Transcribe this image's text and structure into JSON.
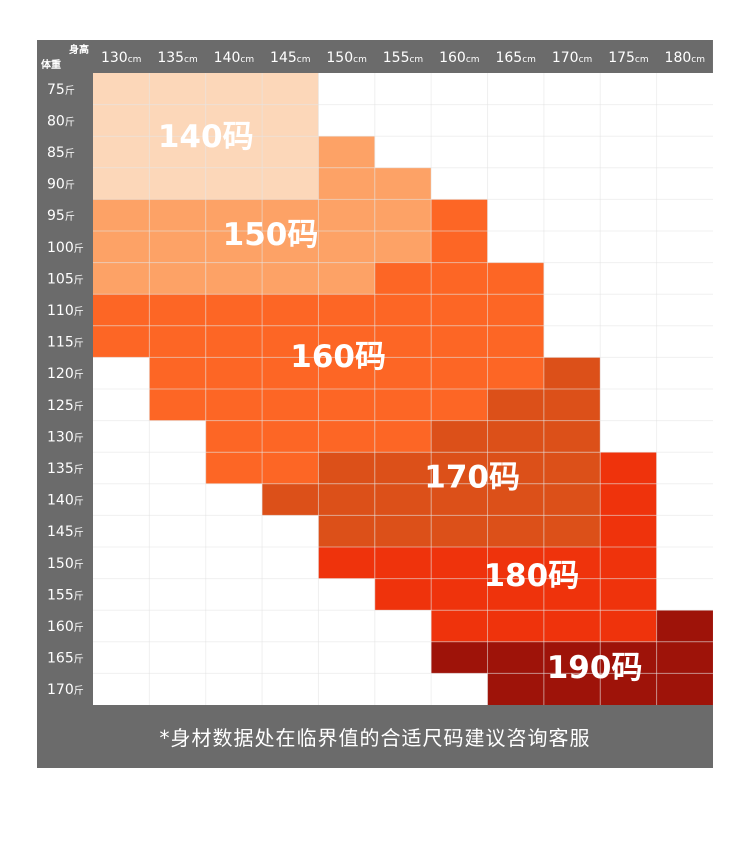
{
  "chart_data": {
    "type": "heatmap",
    "title": "",
    "corner_col_label": "身高",
    "corner_row_label": "体重",
    "col_unit": "cm",
    "row_unit": "斤",
    "columns": [
      "130",
      "135",
      "140",
      "145",
      "150",
      "155",
      "160",
      "165",
      "170",
      "175",
      "180"
    ],
    "rows": [
      "75",
      "80",
      "85",
      "90",
      "95",
      "100",
      "105",
      "110",
      "115",
      "120",
      "125",
      "130",
      "135",
      "140",
      "145",
      "150",
      "155",
      "160",
      "165",
      "170"
    ],
    "sizes": [
      {
        "label": "140码",
        "color": "#fcd7b9"
      },
      {
        "label": "150码",
        "color": "#fda266"
      },
      {
        "label": "160码",
        "color": "#fd6625"
      },
      {
        "label": "170码",
        "color": "#dc5019"
      },
      {
        "label": "180码",
        "color": "#ef330c"
      },
      {
        "label": "190码",
        "color": "#9e1309"
      }
    ],
    "grid": [
      [
        0,
        0,
        0,
        0,
        -1,
        -1,
        -1,
        -1,
        -1,
        -1,
        -1
      ],
      [
        0,
        0,
        0,
        0,
        -1,
        -1,
        -1,
        -1,
        -1,
        -1,
        -1
      ],
      [
        0,
        0,
        0,
        0,
        1,
        -1,
        -1,
        -1,
        -1,
        -1,
        -1
      ],
      [
        0,
        0,
        0,
        0,
        1,
        1,
        -1,
        -1,
        -1,
        -1,
        -1
      ],
      [
        1,
        1,
        1,
        1,
        1,
        1,
        2,
        -1,
        -1,
        -1,
        -1
      ],
      [
        1,
        1,
        1,
        1,
        1,
        1,
        2,
        -1,
        -1,
        -1,
        -1
      ],
      [
        1,
        1,
        1,
        1,
        1,
        2,
        2,
        2,
        -1,
        -1,
        -1
      ],
      [
        2,
        2,
        2,
        2,
        2,
        2,
        2,
        2,
        -1,
        -1,
        -1
      ],
      [
        2,
        2,
        2,
        2,
        2,
        2,
        2,
        2,
        -1,
        -1,
        -1
      ],
      [
        -1,
        2,
        2,
        2,
        2,
        2,
        2,
        2,
        3,
        -1,
        -1
      ],
      [
        -1,
        2,
        2,
        2,
        2,
        2,
        2,
        3,
        3,
        -1,
        -1
      ],
      [
        -1,
        -1,
        2,
        2,
        2,
        2,
        3,
        3,
        3,
        -1,
        -1
      ],
      [
        -1,
        -1,
        2,
        2,
        3,
        3,
        3,
        3,
        3,
        4,
        -1
      ],
      [
        -1,
        -1,
        -1,
        3,
        3,
        3,
        3,
        3,
        3,
        4,
        -1
      ],
      [
        -1,
        -1,
        -1,
        -1,
        3,
        3,
        3,
        3,
        3,
        4,
        -1
      ],
      [
        -1,
        -1,
        -1,
        -1,
        4,
        4,
        4,
        4,
        4,
        4,
        -1
      ],
      [
        -1,
        -1,
        -1,
        -1,
        -1,
        4,
        4,
        4,
        4,
        4,
        -1
      ],
      [
        -1,
        -1,
        -1,
        -1,
        -1,
        -1,
        4,
        4,
        4,
        4,
        5
      ],
      [
        -1,
        -1,
        -1,
        -1,
        -1,
        -1,
        5,
        5,
        5,
        5,
        5
      ],
      [
        -1,
        -1,
        -1,
        -1,
        -1,
        -1,
        -1,
        5,
        5,
        5,
        5
      ]
    ],
    "legend": "none",
    "grid_lines": true
  },
  "colors": {
    "header_bg": "#6b6b6b",
    "header_text": "#ffffff",
    "empty_cell": "#ffffff",
    "grid_line": "#e3e3e3"
  },
  "footer": {
    "note": "*身材数据处在临界值的合适尺码建议咨询客服"
  }
}
